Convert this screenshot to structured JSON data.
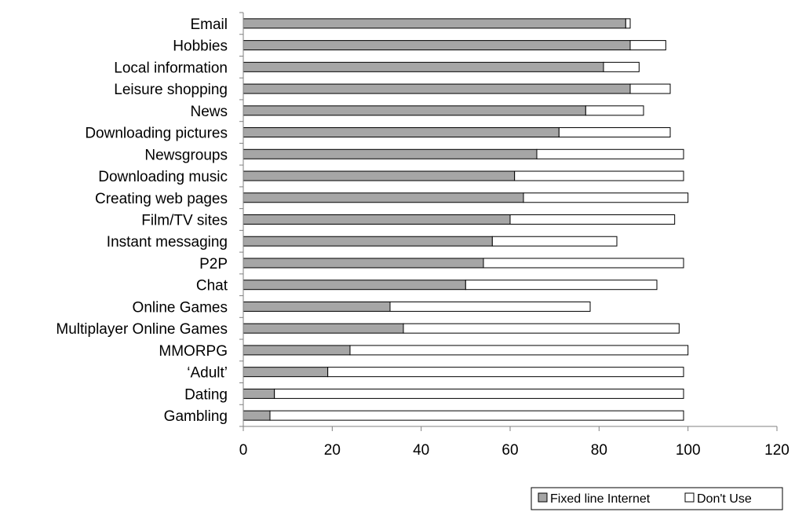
{
  "chart_data": {
    "type": "bar",
    "orientation": "horizontal",
    "stacked": true,
    "categories": [
      "Email",
      "Hobbies",
      "Local information",
      "Leisure shopping",
      "News",
      "Downloading pictures",
      "Newsgroups",
      "Downloading music",
      "Creating web pages",
      "Film/TV sites",
      "Instant messaging",
      "P2P",
      "Chat",
      "Online Games",
      "Multiplayer Online Games",
      "MMORPG",
      "‘Adult’",
      "Dating",
      "Gambling"
    ],
    "series": [
      {
        "name": "Fixed line Internet",
        "color": "#a6a6a6",
        "values": [
          86,
          87,
          81,
          87,
          77,
          71,
          66,
          61,
          63,
          60,
          56,
          54,
          50,
          33,
          36,
          24,
          19,
          7,
          6
        ]
      },
      {
        "name": "Don't Use",
        "color": "#ffffff",
        "values": [
          1,
          8,
          8,
          9,
          13,
          25,
          33,
          38,
          37,
          37,
          28,
          45,
          43,
          45,
          62,
          76,
          80,
          92,
          93
        ]
      }
    ],
    "xlim": [
      0,
      120
    ],
    "xticks": [
      "0",
      "20",
      "40",
      "60",
      "80",
      "100",
      "120"
    ],
    "grid": false,
    "legend_position": "bottom-right",
    "title": "",
    "xlabel": "",
    "ylabel": ""
  }
}
